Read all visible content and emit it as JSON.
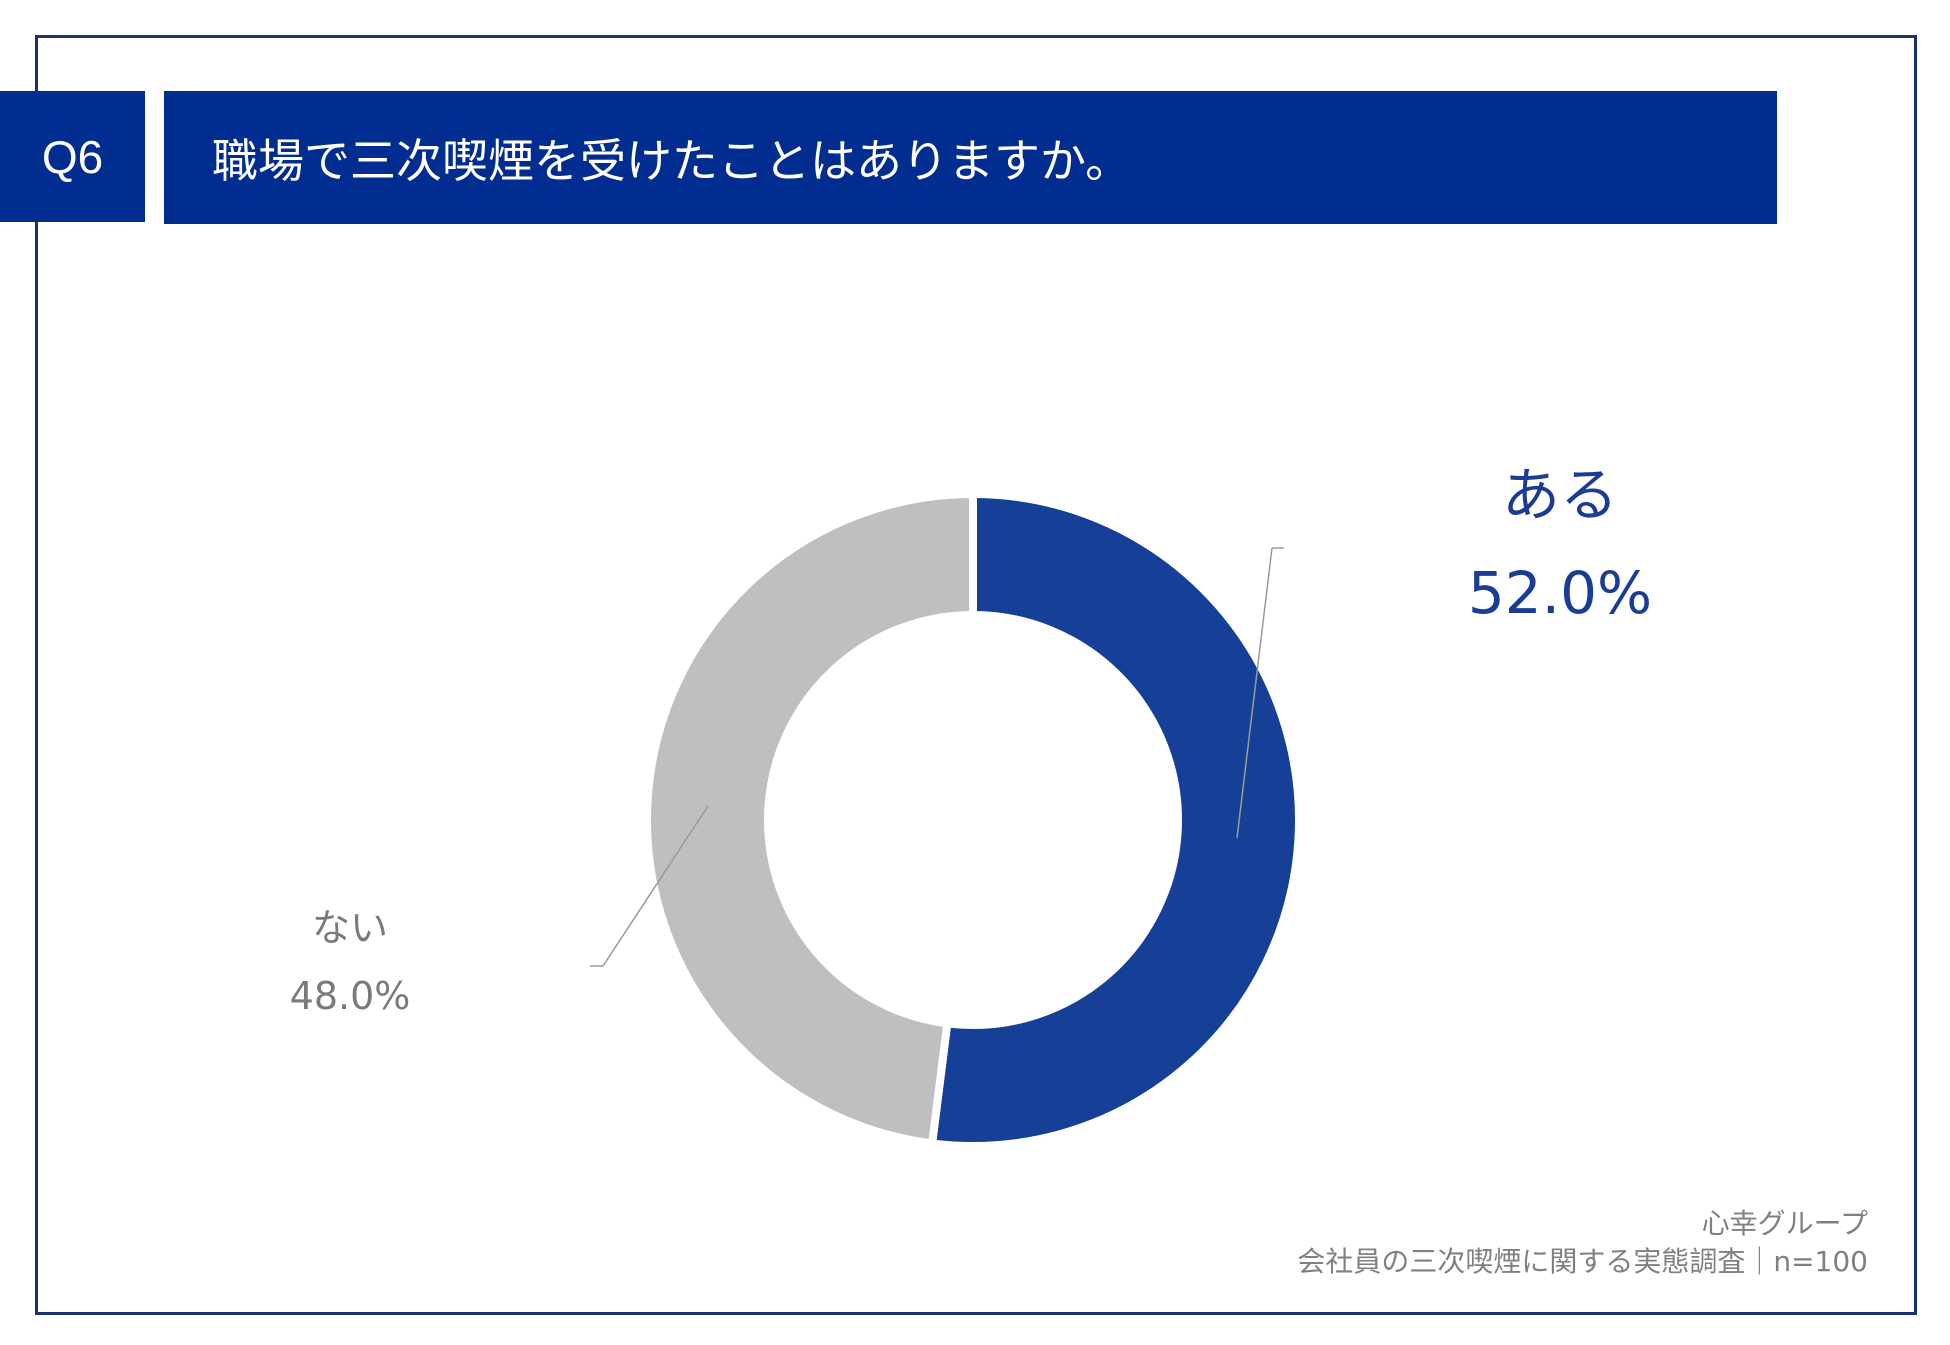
{
  "header": {
    "question_no": "Q6",
    "title": "職場で三次喫煙を受けたことはありますか。"
  },
  "chart_data": {
    "type": "pie",
    "style": "donut",
    "title": "職場で三次喫煙を受けたことはありますか。",
    "categories": [
      "ある",
      "ない"
    ],
    "values": [
      52.0,
      48.0
    ],
    "value_labels": [
      "52.0%",
      "48.0%"
    ],
    "colors": [
      "#163f98",
      "#bfbfbf"
    ]
  },
  "footer": {
    "source": "心幸グループ",
    "survey": "会社員の三次喫煙に関する実態調査｜n=100"
  }
}
